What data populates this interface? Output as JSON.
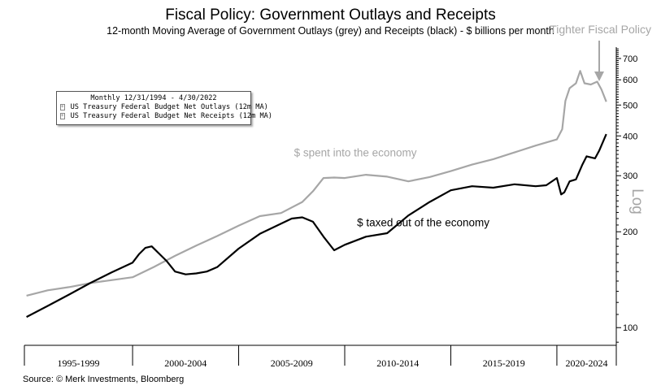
{
  "chart_data": {
    "type": "line",
    "title": "Fiscal Policy: Government Outlays and Receipts",
    "subtitle": "12-month Moving Average of Government Outlays (grey) and Receipts (black) - $ billions per month",
    "top_annotation": "Tighter Fiscal Policy",
    "y_scale_label": "Log",
    "source": "Source: © Merk Investments, Bloomberg",
    "yscale": "log",
    "ylim": [
      88,
      760
    ],
    "y_ticks": [
      100,
      200,
      300,
      400,
      500,
      600,
      700
    ],
    "xlim": [
      1994.9,
      2022.8
    ],
    "x_categories": [
      {
        "label": "1995-1999",
        "start": 1994.9,
        "end": 2000
      },
      {
        "label": "2000-2004",
        "start": 2000,
        "end": 2005
      },
      {
        "label": "2005-2009",
        "start": 2005,
        "end": 2010
      },
      {
        "label": "2010-2014",
        "start": 2010,
        "end": 2015
      },
      {
        "label": "2015-2019",
        "start": 2015,
        "end": 2020
      },
      {
        "label": "2020-2024",
        "start": 2020,
        "end": 2022.8
      }
    ],
    "legend": {
      "header": "Monthly 12/31/1994 - 4/30/2022",
      "position": "top-left",
      "entries": [
        {
          "name": "US Treasury Federal Budget Net Outlays (12m MA)",
          "color": "#a6a6a6"
        },
        {
          "name": "US Treasury Federal Budget Net Receipts (12m MA)",
          "color": "#000000"
        }
      ]
    },
    "annotations": [
      {
        "text": "$ spent into the economy",
        "x": 2010.5,
        "y": 345,
        "color": "#a6a6a6"
      },
      {
        "text": "$ taxed out of the economy",
        "x": 2013.7,
        "y": 208,
        "color": "#000000"
      }
    ],
    "series": [
      {
        "name": "US Treasury Federal Budget Net Outlays (12m MA)",
        "color": "#a6a6a6",
        "x": [
          1995.0,
          1996.0,
          1997.0,
          1998.0,
          1999.0,
          2000.0,
          2001.0,
          2002.0,
          2003.0,
          2004.0,
          2005.0,
          2006.0,
          2007.0,
          2008.0,
          2008.5,
          2009.0,
          2009.5,
          2010.0,
          2011.0,
          2012.0,
          2013.0,
          2014.0,
          2015.0,
          2016.0,
          2017.0,
          2018.0,
          2019.0,
          2020.0,
          2020.25,
          2020.4,
          2020.6,
          2020.9,
          2021.1,
          2021.3,
          2021.6,
          2021.9,
          2022.1,
          2022.33
        ],
        "values": [
          126,
          131,
          134,
          138,
          141,
          144,
          155,
          168,
          181,
          194,
          209,
          224,
          229,
          248,
          268,
          295,
          296,
          295,
          302,
          298,
          288,
          297,
          310,
          325,
          338,
          355,
          373,
          390,
          420,
          515,
          565,
          585,
          640,
          585,
          580,
          592,
          560,
          512
        ]
      },
      {
        "name": "US Treasury Federal Budget Net Receipts (12m MA)",
        "color": "#000000",
        "x": [
          1995.0,
          1996.0,
          1997.0,
          1998.0,
          1999.0,
          2000.0,
          2000.3,
          2000.6,
          2000.9,
          2001.2,
          2001.6,
          2002.0,
          2002.5,
          2003.0,
          2003.5,
          2004.0,
          2005.0,
          2006.0,
          2007.0,
          2007.5,
          2008.0,
          2008.5,
          2009.0,
          2009.5,
          2010.0,
          2011.0,
          2012.0,
          2013.0,
          2014.0,
          2015.0,
          2016.0,
          2017.0,
          2018.0,
          2019.0,
          2019.5,
          2020.0,
          2020.2,
          2020.35,
          2020.6,
          2020.9,
          2021.2,
          2021.4,
          2021.8,
          2022.0,
          2022.33
        ],
        "values": [
          108,
          117,
          127,
          138,
          149,
          160,
          170,
          178,
          180,
          172,
          162,
          150,
          147,
          148,
          150,
          155,
          177,
          197,
          212,
          220,
          222,
          215,
          193,
          175,
          182,
          193,
          198,
          225,
          248,
          270,
          278,
          275,
          282,
          278,
          280,
          295,
          262,
          266,
          288,
          292,
          325,
          345,
          340,
          360,
          405
        ]
      }
    ]
  }
}
